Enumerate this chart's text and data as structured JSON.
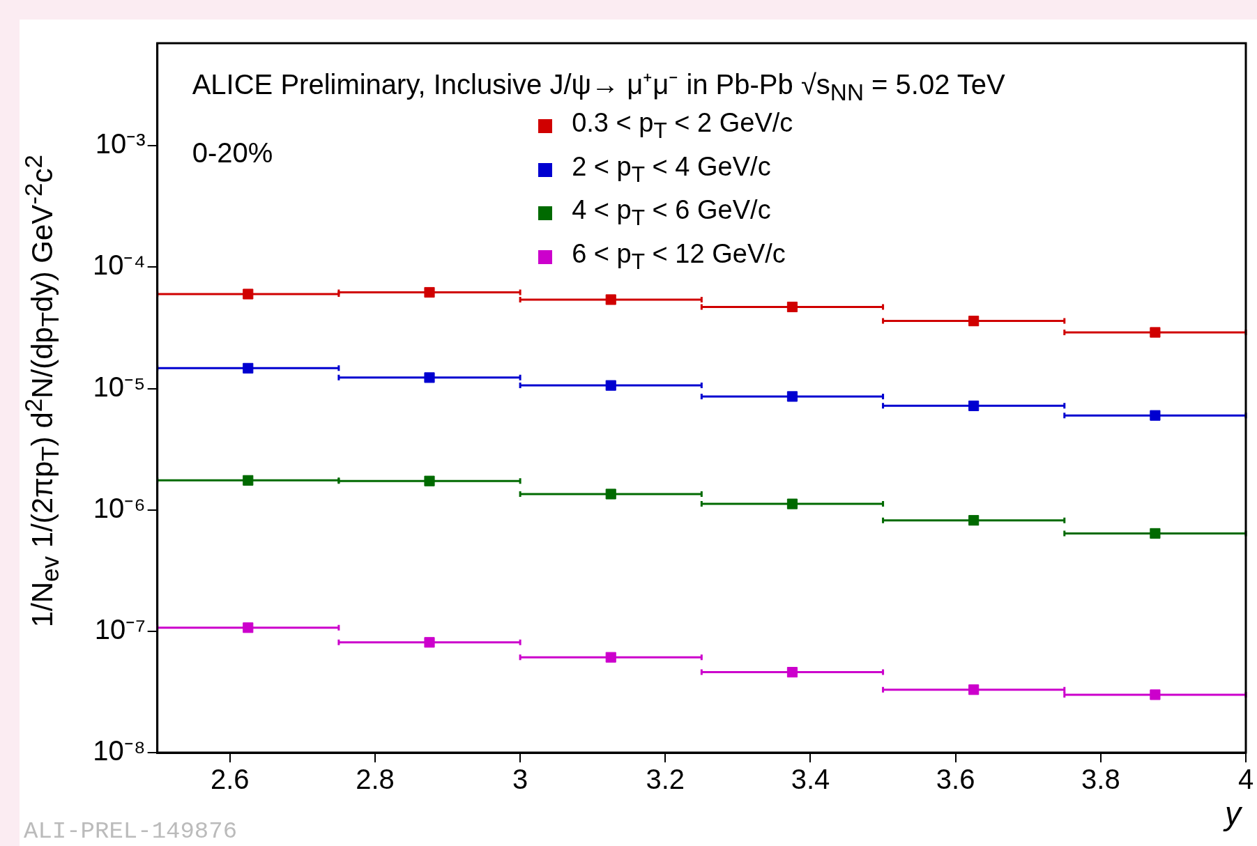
{
  "chart_data": {
    "type": "scatter",
    "xlabel": "y",
    "ylabel": "1/N$_{ev}$ 1/(2πp$_{T}$) d$^{2}$N/(dp$_{T}$dy) GeV$^{-2}$c$^{2}$",
    "annotations": [
      "ALICE Preliminary, Inclusive J/ψ→ μ⁺μ⁻ in Pb-Pb √s$_{NN}$ = 5.02 TeV",
      "0-20%",
      "ALI-PREL-149876"
    ],
    "x": [
      2.625,
      2.875,
      3.125,
      3.375,
      3.625,
      3.875
    ],
    "series": [
      {
        "name": "0.3 < p$_{T}$ < 2 GeV/c",
        "color": "#d00000",
        "values": [
          6e-05,
          6.2e-05,
          5.4e-05,
          4.7e-05,
          3.6e-05,
          2.9e-05
        ],
        "xerrors": [
          0.125,
          0.125,
          0.125,
          0.125,
          0.125,
          0.125
        ]
      },
      {
        "name": "2 < p$_{T}$ < 4 GeV/c",
        "color": "#0000d0",
        "values": [
          1.47e-05,
          1.23e-05,
          1.06e-05,
          8.6e-06,
          7.2e-06,
          6e-06
        ],
        "xerrors": [
          0.125,
          0.125,
          0.125,
          0.125,
          0.125,
          0.125
        ]
      },
      {
        "name": "4 < p$_{T}$ < 6 GeV/c",
        "color": "#006a00",
        "values": [
          1.75e-06,
          1.73e-06,
          1.35e-06,
          1.12e-06,
          8.2e-07,
          6.4e-07
        ],
        "xerrors": [
          0.125,
          0.125,
          0.125,
          0.125,
          0.125,
          0.125
        ]
      },
      {
        "name": "6 < p$_{T}$ < 12 GeV/c",
        "color": "#cc00cc",
        "values": [
          1.07e-07,
          8.1e-08,
          6.1e-08,
          4.6e-08,
          3.3e-08,
          3e-08
        ],
        "xerrors": [
          0.125,
          0.125,
          0.125,
          0.125,
          0.125,
          0.125
        ]
      }
    ],
    "xlim": [
      2.5,
      4
    ],
    "xticks": [
      2.6,
      2.8,
      3,
      3.2,
      3.4,
      3.6,
      3.8,
      4
    ],
    "ylim": [
      1e-08,
      0.007
    ],
    "yticks": [
      {
        "value": 1e-08,
        "label": "10⁻⁸"
      },
      {
        "value": 1e-07,
        "label": "10⁻⁷"
      },
      {
        "value": 1e-06,
        "label": "10⁻⁶"
      },
      {
        "value": 1e-05,
        "label": "10⁻⁵"
      },
      {
        "value": 0.0001,
        "label": "10⁻⁴"
      },
      {
        "value": 0.001,
        "label": "10⁻³"
      }
    ],
    "log": "y",
    "grid": false,
    "legend": "top right",
    "marker": "square"
  }
}
